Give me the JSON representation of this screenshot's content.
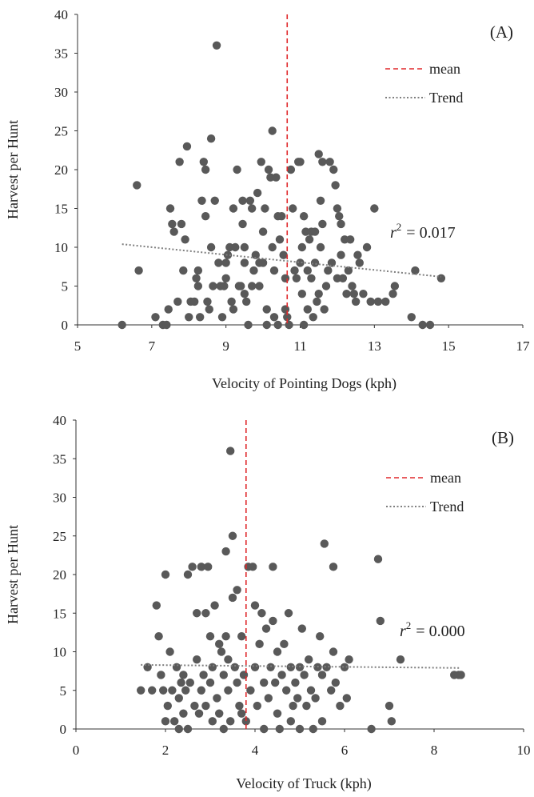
{
  "chart_data": [
    {
      "type": "scatter",
      "panel_label": "(A)",
      "xlabel": "Velocity of Pointing Dogs (kph)",
      "ylabel": "Harvest per Hunt",
      "xlim": [
        5,
        17
      ],
      "ylim": [
        0,
        40
      ],
      "xticks": [
        "5",
        "7",
        "9",
        "11",
        "13",
        "15",
        "17"
      ],
      "yticks": [
        "0",
        "5",
        "10",
        "15",
        "20",
        "25",
        "30",
        "35",
        "40"
      ],
      "legend": {
        "placement": "top-right",
        "mean_label": "mean",
        "trend_label": "Trend"
      },
      "r2_label": "r",
      "r2_sup": "2",
      "r2_value": "= 0.017",
      "mean_x": 10.65,
      "trend": {
        "x": [
          6.2,
          14.8
        ],
        "y": [
          10.4,
          6.2
        ]
      },
      "colors": {
        "points": "#595959",
        "mean": "#e0282b",
        "trend": "#7f7f7f"
      },
      "grid": false,
      "points": [
        [
          6.2,
          0
        ],
        [
          6.6,
          18
        ],
        [
          6.65,
          7
        ],
        [
          7.1,
          1
        ],
        [
          7.3,
          0
        ],
        [
          7.4,
          0
        ],
        [
          7.45,
          2
        ],
        [
          7.5,
          15
        ],
        [
          7.55,
          13
        ],
        [
          7.6,
          12
        ],
        [
          7.7,
          3
        ],
        [
          7.75,
          21
        ],
        [
          7.8,
          13
        ],
        [
          7.85,
          7
        ],
        [
          7.9,
          11
        ],
        [
          7.95,
          23
        ],
        [
          8.0,
          1
        ],
        [
          8.05,
          3
        ],
        [
          8.15,
          3
        ],
        [
          8.2,
          6
        ],
        [
          8.25,
          7
        ],
        [
          8.25,
          5
        ],
        [
          8.3,
          1
        ],
        [
          8.35,
          16
        ],
        [
          8.4,
          21
        ],
        [
          8.45,
          20
        ],
        [
          8.45,
          14
        ],
        [
          8.5,
          3
        ],
        [
          8.55,
          2
        ],
        [
          8.6,
          24
        ],
        [
          8.6,
          10
        ],
        [
          8.65,
          5
        ],
        [
          8.7,
          16
        ],
        [
          8.75,
          36
        ],
        [
          8.8,
          8
        ],
        [
          8.85,
          5
        ],
        [
          8.9,
          1
        ],
        [
          8.95,
          5
        ],
        [
          9.0,
          8
        ],
        [
          9.0,
          6
        ],
        [
          9.05,
          9
        ],
        [
          9.1,
          10
        ],
        [
          9.15,
          3
        ],
        [
          9.2,
          15
        ],
        [
          9.2,
          2
        ],
        [
          9.25,
          10
        ],
        [
          9.3,
          20
        ],
        [
          9.35,
          5
        ],
        [
          9.4,
          5
        ],
        [
          9.45,
          16
        ],
        [
          9.45,
          13
        ],
        [
          9.5,
          10
        ],
        [
          9.5,
          8
        ],
        [
          9.5,
          4
        ],
        [
          9.55,
          3
        ],
        [
          9.6,
          0
        ],
        [
          9.65,
          16
        ],
        [
          9.7,
          15
        ],
        [
          9.7,
          5
        ],
        [
          9.75,
          7
        ],
        [
          9.8,
          9
        ],
        [
          9.85,
          17
        ],
        [
          9.9,
          8
        ],
        [
          9.9,
          5
        ],
        [
          9.95,
          21
        ],
        [
          10.0,
          12
        ],
        [
          10.0,
          8
        ],
        [
          10.05,
          15
        ],
        [
          10.1,
          0
        ],
        [
          10.1,
          2
        ],
        [
          10.15,
          20
        ],
        [
          10.2,
          19
        ],
        [
          10.25,
          25
        ],
        [
          10.25,
          10
        ],
        [
          10.3,
          7
        ],
        [
          10.3,
          1
        ],
        [
          10.35,
          19
        ],
        [
          10.4,
          0
        ],
        [
          10.4,
          14
        ],
        [
          10.45,
          11
        ],
        [
          10.5,
          14
        ],
        [
          10.55,
          9
        ],
        [
          10.6,
          6
        ],
        [
          10.6,
          2
        ],
        [
          10.65,
          1
        ],
        [
          10.7,
          0
        ],
        [
          10.75,
          20
        ],
        [
          10.8,
          15
        ],
        [
          10.85,
          7
        ],
        [
          10.9,
          6
        ],
        [
          10.95,
          21
        ],
        [
          11.0,
          21
        ],
        [
          11.0,
          8
        ],
        [
          11.05,
          10
        ],
        [
          11.05,
          4
        ],
        [
          11.1,
          14
        ],
        [
          11.1,
          0
        ],
        [
          11.15,
          12
        ],
        [
          11.2,
          7
        ],
        [
          11.2,
          2
        ],
        [
          11.25,
          11
        ],
        [
          11.3,
          12
        ],
        [
          11.3,
          6
        ],
        [
          11.35,
          1
        ],
        [
          11.4,
          12
        ],
        [
          11.4,
          8
        ],
        [
          11.45,
          3
        ],
        [
          11.5,
          22
        ],
        [
          11.5,
          4
        ],
        [
          11.55,
          10
        ],
        [
          11.55,
          16
        ],
        [
          11.6,
          21
        ],
        [
          11.6,
          13
        ],
        [
          11.65,
          2
        ],
        [
          11.7,
          5
        ],
        [
          11.75,
          7
        ],
        [
          11.8,
          21
        ],
        [
          11.85,
          8
        ],
        [
          11.9,
          20
        ],
        [
          11.95,
          18
        ],
        [
          12.0,
          15
        ],
        [
          12.0,
          6
        ],
        [
          12.05,
          14
        ],
        [
          12.1,
          13
        ],
        [
          12.1,
          9
        ],
        [
          12.15,
          6
        ],
        [
          12.2,
          11
        ],
        [
          12.25,
          4
        ],
        [
          12.3,
          7
        ],
        [
          12.35,
          11
        ],
        [
          12.4,
          5
        ],
        [
          12.45,
          4
        ],
        [
          12.5,
          3
        ],
        [
          12.55,
          9
        ],
        [
          12.6,
          8
        ],
        [
          12.7,
          4
        ],
        [
          12.8,
          10
        ],
        [
          12.9,
          3
        ],
        [
          13.0,
          15
        ],
        [
          13.1,
          3
        ],
        [
          13.3,
          3
        ],
        [
          13.5,
          4
        ],
        [
          13.55,
          5
        ],
        [
          14.0,
          1
        ],
        [
          14.1,
          7
        ],
        [
          14.3,
          0
        ],
        [
          14.5,
          0
        ],
        [
          14.8,
          6
        ]
      ]
    },
    {
      "type": "scatter",
      "panel_label": "(B)",
      "xlabel": "Velocity of Truck (kph)",
      "ylabel": "Harvest per Hunt",
      "xlim": [
        0,
        10
      ],
      "ylim": [
        0,
        40
      ],
      "xticks": [
        "0",
        "2",
        "4",
        "6",
        "8",
        "10"
      ],
      "yticks": [
        "0",
        "5",
        "10",
        "15",
        "20",
        "25",
        "30",
        "35",
        "40"
      ],
      "legend": {
        "placement": "top-right",
        "mean_label": "mean",
        "trend_label": "Trend"
      },
      "r2_label": "r",
      "r2_sup": "2",
      "r2_value": "= 0.000",
      "mean_x": 3.8,
      "trend": {
        "x": [
          1.45,
          8.6
        ],
        "y": [
          8.3,
          7.9
        ]
      },
      "colors": {
        "points": "#595959",
        "mean": "#e0282b",
        "trend": "#7f7f7f"
      },
      "grid": false,
      "points": [
        [
          1.45,
          5
        ],
        [
          1.6,
          8
        ],
        [
          1.7,
          5
        ],
        [
          1.8,
          16
        ],
        [
          1.85,
          12
        ],
        [
          1.9,
          7
        ],
        [
          1.95,
          5
        ],
        [
          2.0,
          20
        ],
        [
          2.0,
          1
        ],
        [
          2.05,
          3
        ],
        [
          2.1,
          10
        ],
        [
          2.15,
          5
        ],
        [
          2.2,
          1
        ],
        [
          2.25,
          8
        ],
        [
          2.3,
          0
        ],
        [
          2.3,
          4
        ],
        [
          2.35,
          6
        ],
        [
          2.4,
          2
        ],
        [
          2.4,
          7
        ],
        [
          2.45,
          5
        ],
        [
          2.5,
          0
        ],
        [
          2.5,
          20
        ],
        [
          2.55,
          6
        ],
        [
          2.6,
          21
        ],
        [
          2.65,
          3
        ],
        [
          2.7,
          15
        ],
        [
          2.7,
          9
        ],
        [
          2.75,
          2
        ],
        [
          2.8,
          21
        ],
        [
          2.8,
          5
        ],
        [
          2.85,
          7
        ],
        [
          2.9,
          3
        ],
        [
          2.9,
          15
        ],
        [
          2.95,
          21
        ],
        [
          3.0,
          12
        ],
        [
          3.0,
          6
        ],
        [
          3.05,
          8
        ],
        [
          3.05,
          1
        ],
        [
          3.1,
          16
        ],
        [
          3.15,
          4
        ],
        [
          3.2,
          2
        ],
        [
          3.2,
          11
        ],
        [
          3.25,
          10
        ],
        [
          3.3,
          7
        ],
        [
          3.3,
          0
        ],
        [
          3.35,
          23
        ],
        [
          3.35,
          12
        ],
        [
          3.4,
          5
        ],
        [
          3.4,
          9
        ],
        [
          3.45,
          36
        ],
        [
          3.45,
          1
        ],
        [
          3.5,
          25
        ],
        [
          3.5,
          17
        ],
        [
          3.55,
          8
        ],
        [
          3.6,
          18
        ],
        [
          3.6,
          6
        ],
        [
          3.65,
          3
        ],
        [
          3.7,
          12
        ],
        [
          3.7,
          2
        ],
        [
          3.75,
          7
        ],
        [
          3.8,
          1
        ],
        [
          3.85,
          21
        ],
        [
          3.9,
          5
        ],
        [
          3.95,
          21
        ],
        [
          4.0,
          16
        ],
        [
          4.0,
          8
        ],
        [
          4.05,
          3
        ],
        [
          4.1,
          11
        ],
        [
          4.15,
          15
        ],
        [
          4.2,
          6
        ],
        [
          4.2,
          0
        ],
        [
          4.25,
          13
        ],
        [
          4.3,
          4
        ],
        [
          4.35,
          8
        ],
        [
          4.4,
          21
        ],
        [
          4.4,
          14
        ],
        [
          4.45,
          6
        ],
        [
          4.5,
          10
        ],
        [
          4.5,
          2
        ],
        [
          4.55,
          0
        ],
        [
          4.6,
          7
        ],
        [
          4.65,
          11
        ],
        [
          4.7,
          5
        ],
        [
          4.75,
          15
        ],
        [
          4.8,
          8
        ],
        [
          4.8,
          1
        ],
        [
          4.85,
          3
        ],
        [
          4.9,
          6
        ],
        [
          4.95,
          4
        ],
        [
          5.0,
          8
        ],
        [
          5.0,
          0
        ],
        [
          5.05,
          13
        ],
        [
          5.1,
          7
        ],
        [
          5.15,
          3
        ],
        [
          5.2,
          9
        ],
        [
          5.25,
          5
        ],
        [
          5.3,
          0
        ],
        [
          5.35,
          4
        ],
        [
          5.4,
          8
        ],
        [
          5.45,
          12
        ],
        [
          5.5,
          7
        ],
        [
          5.5,
          1
        ],
        [
          5.55,
          24
        ],
        [
          5.6,
          8
        ],
        [
          5.7,
          5
        ],
        [
          5.75,
          10
        ],
        [
          5.75,
          21
        ],
        [
          5.8,
          6
        ],
        [
          5.9,
          3
        ],
        [
          6.0,
          8
        ],
        [
          6.05,
          4
        ],
        [
          6.1,
          9
        ],
        [
          6.6,
          0
        ],
        [
          6.75,
          22
        ],
        [
          6.8,
          14
        ],
        [
          7.0,
          3
        ],
        [
          7.05,
          1
        ],
        [
          7.25,
          9
        ],
        [
          8.45,
          7
        ],
        [
          8.55,
          7
        ],
        [
          8.6,
          7
        ]
      ]
    }
  ]
}
